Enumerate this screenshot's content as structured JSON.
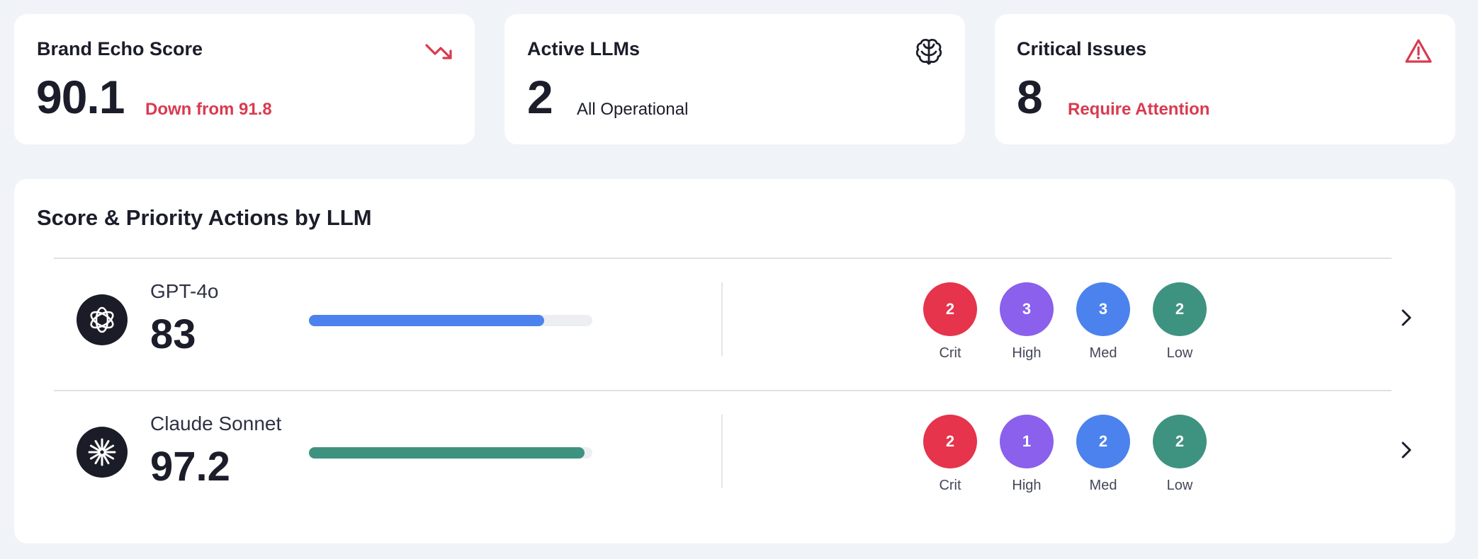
{
  "stats": [
    {
      "title": "Brand Echo Score",
      "value": "90.1",
      "sub": "Down from 91.8",
      "icon": "trending-down-icon",
      "color": "#d93a4f"
    },
    {
      "title": "Active LLMs",
      "value": "2",
      "sub": "All Operational",
      "icon": "brain-icon",
      "color": "#1b1d2a"
    },
    {
      "title": "Critical Issues",
      "value": "8",
      "sub": "Require Attention",
      "icon": "alert-triangle-icon",
      "color": "#d93a4f"
    }
  ],
  "section": {
    "title": "Score & Priority Actions by LLM"
  },
  "priority_labels": [
    "Crit",
    "High",
    "Med",
    "Low"
  ],
  "priority_colors": {
    "crit": "#e5344b",
    "high": "#8a60ec",
    "med": "#4c82ee",
    "low": "#3e9380"
  },
  "llms": [
    {
      "name": "GPT-4o",
      "score": "83",
      "progress": 0.83,
      "bar_color": "#4c82ee",
      "icon": "openai-logo-icon",
      "counts": [
        "2",
        "3",
        "3",
        "2"
      ]
    },
    {
      "name": "Claude Sonnet",
      "score": "97.2",
      "progress": 0.972,
      "bar_color": "#3e9380",
      "icon": "claude-logo-icon",
      "counts": [
        "2",
        "1",
        "2",
        "2"
      ]
    }
  ]
}
